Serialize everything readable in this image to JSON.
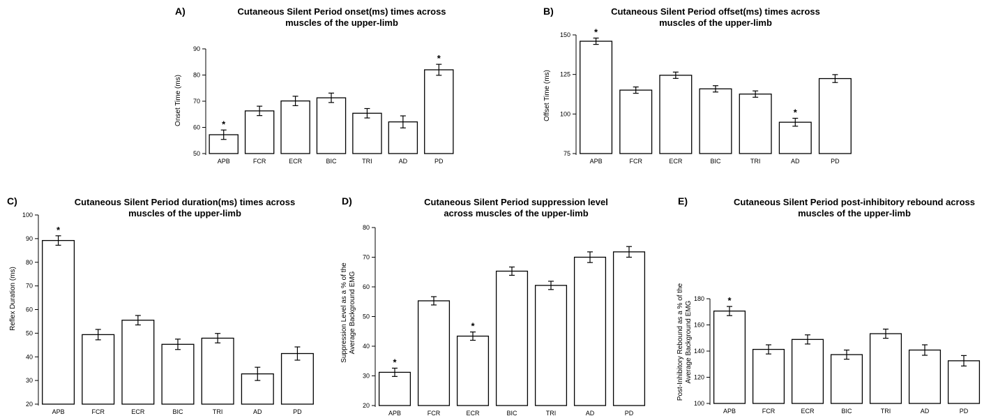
{
  "chart_data": [
    {
      "type": "bar",
      "panel_label": "A)",
      "title": "Cutaneous Silent Period onset(ms) times across muscles of the upper-limb",
      "title_lines": [
        "Cutaneous Silent Period onset(ms) times across",
        "muscles of the upper-limb"
      ],
      "ylabel_lines": [
        "Onset Time (ms)"
      ],
      "categories": [
        "APB",
        "FCR",
        "ECR",
        "BIC",
        "TRI",
        "AD",
        "PD"
      ],
      "values": [
        57.2,
        66.3,
        70.1,
        71.3,
        65.4,
        62.1,
        82.0
      ],
      "errors": [
        1.8,
        1.8,
        1.8,
        1.8,
        1.8,
        2.3,
        2.1
      ],
      "significant": [
        true,
        false,
        false,
        false,
        false,
        false,
        true
      ],
      "significance_marker": "*",
      "ylim": [
        50,
        90
      ],
      "yticks": [
        "50",
        "60",
        "70",
        "80",
        "90"
      ],
      "grid": false
    },
    {
      "type": "bar",
      "panel_label": "B)",
      "title": "Cutaneous Silent Period offset(ms) times across muscles of the upper-limb",
      "title_lines": [
        "Cutaneous Silent Period offset(ms) times across",
        "muscles of the upper-limb"
      ],
      "ylabel_lines": [
        "Offset Time (ms)"
      ],
      "categories": [
        "APB",
        "FCR",
        "ECR",
        "BIC",
        "TRI",
        "AD",
        "PD"
      ],
      "values": [
        146.0,
        115.1,
        124.5,
        115.9,
        112.6,
        94.8,
        122.4
      ],
      "errors": [
        2.0,
        2.0,
        2.0,
        2.0,
        2.0,
        2.5,
        2.5
      ],
      "significant": [
        true,
        false,
        false,
        false,
        false,
        true,
        false
      ],
      "significance_marker": "*",
      "ylim": [
        75,
        150
      ],
      "yticks": [
        "75",
        "100",
        "125",
        "150"
      ],
      "grid": false
    },
    {
      "type": "bar",
      "panel_label": "C)",
      "title": "Cutaneous Silent Period duration(ms) times across muscles of the upper-limb",
      "title_lines": [
        "Cutaneous Silent Period duration(ms) times across",
        "muscles of the upper-limb"
      ],
      "ylabel_lines": [
        "Reflex Duration (ms)"
      ],
      "categories": [
        "APB",
        "FCR",
        "ECR",
        "BIC",
        "TRI",
        "AD",
        "PD"
      ],
      "values": [
        89.2,
        49.4,
        55.5,
        45.3,
        47.9,
        32.8,
        41.4
      ],
      "errors": [
        2.0,
        2.2,
        2.0,
        2.2,
        2.0,
        2.8,
        2.8
      ],
      "significant": [
        true,
        false,
        false,
        false,
        false,
        false,
        false
      ],
      "significance_marker": "*",
      "ylim": [
        20,
        100
      ],
      "yticks": [
        "20",
        "30",
        "40",
        "50",
        "60",
        "70",
        "80",
        "90",
        "100"
      ],
      "grid": false
    },
    {
      "type": "bar",
      "panel_label": "D)",
      "title": "Cutaneous Silent Period suppression level across muscles of the upper-limb",
      "title_lines": [
        "Cutaneous Silent Period suppression level",
        "across muscles of the upper-limb"
      ],
      "ylabel_lines": [
        "Suppression Level as a % of the",
        "Average Background EMG"
      ],
      "categories": [
        "APB",
        "FCR",
        "ECR",
        "BIC",
        "TRI",
        "AD",
        "PD"
      ],
      "values": [
        31.2,
        55.3,
        43.4,
        65.3,
        60.5,
        70.0,
        71.8
      ],
      "errors": [
        1.4,
        1.4,
        1.4,
        1.4,
        1.4,
        1.8,
        1.8
      ],
      "significant": [
        true,
        false,
        true,
        false,
        false,
        false,
        false
      ],
      "significance_marker": "*",
      "ylim": [
        20,
        80
      ],
      "yticks": [
        "20",
        "30",
        "40",
        "50",
        "60",
        "70",
        "80"
      ],
      "grid": false
    },
    {
      "type": "bar",
      "panel_label": "E)",
      "title": "Cutaneous Silent Period post-inhibitory rebound across muscles of the upper-limb",
      "title_lines": [
        "Cutaneous Silent Period post-inhibitory rebound across",
        "muscles of the upper-limb"
      ],
      "ylabel_lines": [
        "Post-Inhibitory Rebound as a % of the",
        "Average Background EMG"
      ],
      "categories": [
        "APB",
        "FCR",
        "ECR",
        "BIC",
        "TRI",
        "AD",
        "PD"
      ],
      "values": [
        170.6,
        141.3,
        148.9,
        137.3,
        153.3,
        140.8,
        132.6
      ],
      "errors": [
        3.5,
        3.5,
        3.5,
        3.5,
        3.5,
        4.0,
        4.0
      ],
      "significant": [
        true,
        false,
        false,
        false,
        false,
        false,
        false
      ],
      "significance_marker": "*",
      "ylim": [
        100,
        180
      ],
      "yticks": [
        "100",
        "120",
        "140",
        "160",
        "180"
      ],
      "grid": false
    }
  ]
}
